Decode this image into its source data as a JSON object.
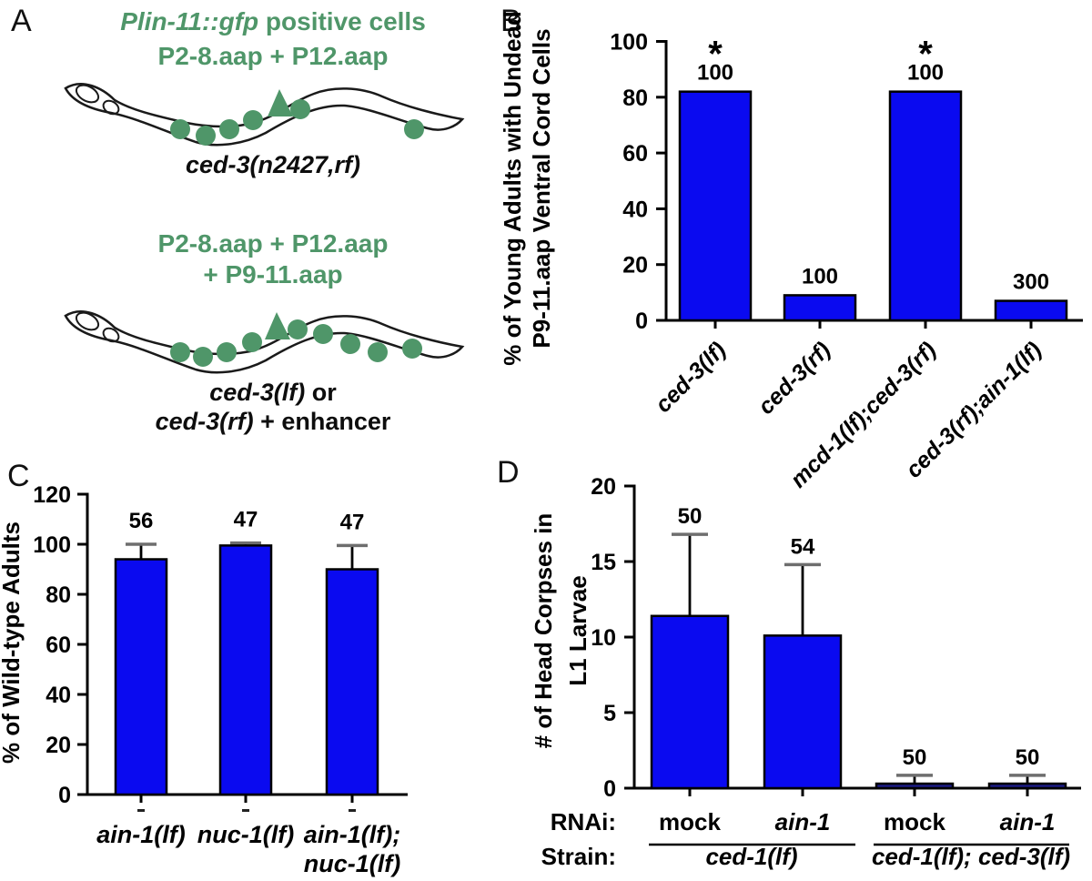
{
  "colors": {
    "bar_blue": "#0a0af0",
    "bar_navy": "#1b1b85",
    "green": "#4f9669",
    "error_cap_gray": "#6e6e6e",
    "axis_black": "#000000"
  },
  "panels": {
    "A": {
      "label": "A",
      "title_italic": "Plin-11::gfp",
      "title_rest": " positive cells",
      "cells_line1": "P2-8.aap + P12.aap",
      "caption1": "ced-3(n2427,rf)",
      "cells2_line1": "P2-8.aap + P12.aap",
      "cells2_line2": "+ P9-11.aap",
      "caption2_italic": "ced-3(lf)",
      "caption2_rest": " or",
      "caption3_italic": "ced-3(rf)",
      "caption3_rest": " + enhancer"
    },
    "B": {
      "label": "B"
    },
    "C": {
      "label": "C"
    },
    "D": {
      "label": "D"
    }
  },
  "chart_data": [
    {
      "id": "B",
      "type": "bar",
      "ylabel_lines": [
        "% of Young Adults with Undead",
        "P9-11.aap Ventral Cord Cells"
      ],
      "categories": [
        "ced-3(lf)",
        "ced-3(rf)",
        "mcd-1(lf);ced-3(rf)",
        "ced-3(rf);ain-1(lf)"
      ],
      "values": [
        82,
        9,
        82,
        7
      ],
      "n_labels": [
        "100",
        "100",
        "100",
        "300"
      ],
      "significance": [
        "*",
        "",
        "*",
        ""
      ],
      "ylim": [
        0,
        100
      ],
      "yticks": [
        0,
        20,
        40,
        60,
        80,
        100
      ],
      "grid": false,
      "bar_color": "#0a0af0"
    },
    {
      "id": "C",
      "type": "bar",
      "ylabel_lines": [
        "% of Wild-type Adults"
      ],
      "categories_lines": [
        [
          "ain-1(lf)"
        ],
        [
          "nuc-1(lf)"
        ],
        [
          "ain-1(lf);",
          "nuc-1(lf)"
        ]
      ],
      "values": [
        94,
        99.5,
        90
      ],
      "errors_plus": [
        6,
        1,
        9.5
      ],
      "n_labels": [
        "56",
        "47",
        "47"
      ],
      "ylim": [
        0,
        120
      ],
      "yticks": [
        0,
        20,
        40,
        60,
        80,
        100,
        120
      ],
      "grid": false,
      "bar_color": "#0a0af0"
    },
    {
      "id": "D",
      "type": "bar",
      "ylabel_lines": [
        "# of Head Corpses in",
        "L1 Larvae"
      ],
      "values": [
        11.4,
        10.1,
        0.3,
        0.3
      ],
      "errors_plus": [
        5.4,
        4.7,
        0.55,
        0.55
      ],
      "n_labels": [
        "50",
        "54",
        "50",
        "50"
      ],
      "ylim": [
        0,
        20
      ],
      "yticks": [
        0,
        5,
        10,
        15,
        20
      ],
      "grid": false,
      "bar_color": "#0a0af0",
      "bar_colors": [
        "#0a0af0",
        "#0a0af0",
        "#1b1b85",
        "#1b1b85"
      ],
      "rows": {
        "rnai_label": "RNAi:",
        "rnai_values": [
          {
            "text": "mock",
            "italic": false
          },
          {
            "text": "ain-1",
            "italic": true
          },
          {
            "text": "mock",
            "italic": false
          },
          {
            "text": "ain-1",
            "italic": true
          }
        ],
        "strain_label": "Strain:",
        "strain_groups": [
          {
            "label": "ced-1(lf)"
          },
          {
            "label": "ced-1(lf); ced-3(lf)"
          }
        ]
      }
    }
  ]
}
